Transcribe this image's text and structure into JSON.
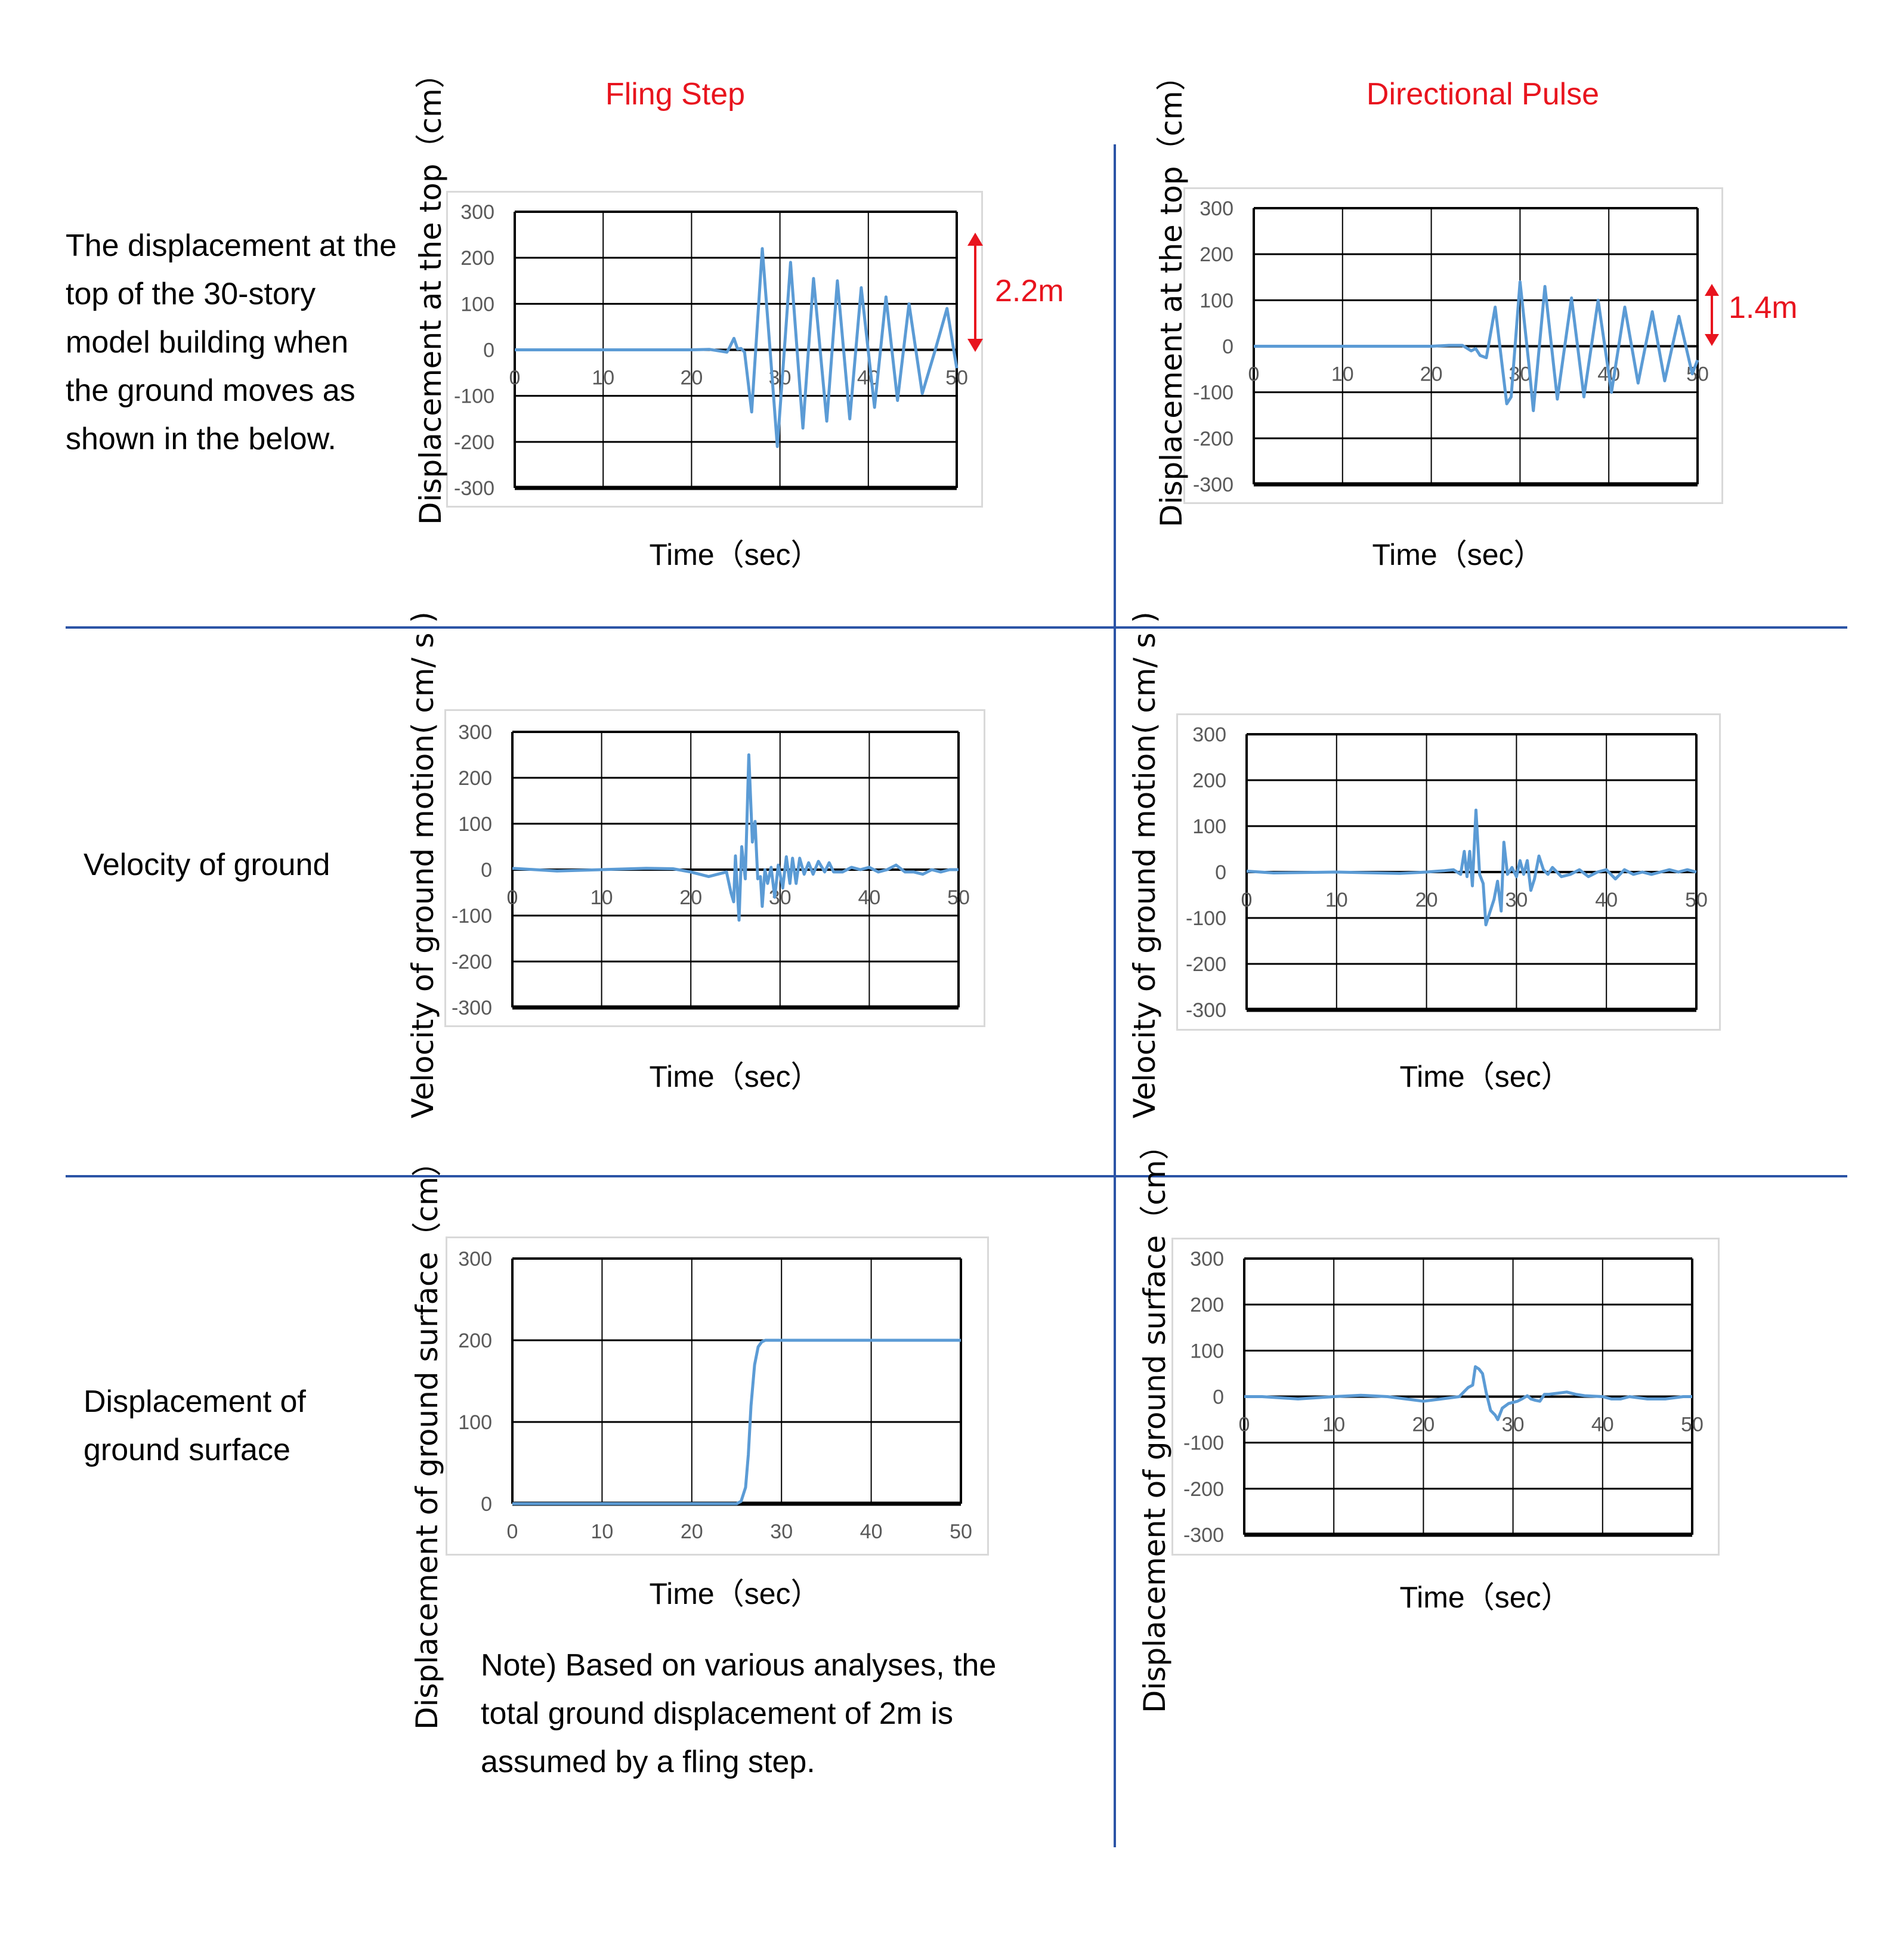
{
  "columns": {
    "left_title": "Fling Step",
    "right_title": "Directional Pulse"
  },
  "row_labels": {
    "row1": "The displacement at the\ntop of the 30-story\nmodel building when\nthe ground moves as\nshown in the below.",
    "row2": "Velocity of ground",
    "row3": "Displacement of\nground surface"
  },
  "note": "Note) Based on various analyses, the\ntotal ground displacement of 2m is\nassumed  by a fling step.",
  "annotations": {
    "fling_amplitude": "2.2m",
    "pulse_amplitude": "1.4m"
  },
  "colors": {
    "title": "#e8141e",
    "series": "#5b9bd5",
    "divider": "#2c54a6",
    "annotation": "#e8141e"
  },
  "chart_data": [
    {
      "id": "fling-top-displacement",
      "type": "line",
      "title": "",
      "xlabel": "Time（sec）",
      "ylabel": "Displacement at the top（cm）",
      "xlim": [
        0,
        50
      ],
      "ylim": [
        -300,
        300
      ],
      "xticks": [
        "0",
        "10",
        "20",
        "30",
        "40",
        "50"
      ],
      "yticks": [
        "300",
        "200",
        "100",
        "0",
        "-100",
        "-200",
        "-300"
      ],
      "grid": true,
      "x_tick_position": "on zero line",
      "series": [
        {
          "name": "Displacement at the top",
          "x": [
            0,
            20,
            22,
            23,
            24,
            24.3,
            24.8,
            25.2,
            25.6,
            26,
            26.8,
            28,
            29,
            29.7,
            30.5,
            31.2,
            32.6,
            33.8,
            35.3,
            36.5,
            37.9,
            39.2,
            40.7,
            42,
            43.3,
            44.6,
            46.1,
            47.5,
            48.9,
            50
          ],
          "y": [
            0,
            0,
            1,
            -2,
            -5,
            5,
            25,
            2,
            3,
            -5,
            -135,
            220,
            -30,
            -210,
            0,
            190,
            -170,
            155,
            -155,
            150,
            -150,
            135,
            -125,
            115,
            -110,
            100,
            -95,
            -5,
            90,
            -40
          ]
        }
      ]
    },
    {
      "id": "pulse-top-displacement",
      "type": "line",
      "title": "",
      "xlabel": "Time（sec）",
      "ylabel": "Displacement at the top（cm）",
      "xlim": [
        0,
        50
      ],
      "ylim": [
        -300,
        300
      ],
      "xticks": [
        "0",
        "10",
        "20",
        "30",
        "40",
        "50"
      ],
      "yticks": [
        "300",
        "200",
        "100",
        "0",
        "-100",
        "-200",
        "-300"
      ],
      "grid": true,
      "series": [
        {
          "name": "Displacement at the top",
          "x": [
            0,
            20,
            22,
            23.5,
            24.5,
            25,
            25.5,
            26.2,
            27.2,
            28.5,
            29,
            30,
            31,
            31.5,
            32.8,
            34.2,
            35.8,
            37.2,
            38.8,
            40.3,
            41.8,
            43.3,
            44.9,
            46.3,
            47.9,
            49.4,
            50
          ],
          "y": [
            0,
            0,
            2,
            2,
            -10,
            -5,
            -20,
            -25,
            85,
            -125,
            -110,
            140,
            -40,
            -140,
            130,
            -115,
            105,
            -110,
            100,
            -100,
            85,
            -80,
            75,
            -75,
            65,
            -60,
            -30
          ]
        }
      ]
    },
    {
      "id": "fling-ground-velocity",
      "type": "line",
      "title": "",
      "xlabel": "Time（sec）",
      "ylabel": "Velocity of ground motion( cm/ s )",
      "xlim": [
        0,
        50
      ],
      "ylim": [
        -300,
        300
      ],
      "xticks": [
        "0",
        "10",
        "20",
        "30",
        "40",
        "50"
      ],
      "yticks": [
        "300",
        "200",
        "100",
        "0",
        "-100",
        "-200",
        "-300"
      ],
      "grid": true,
      "series": [
        {
          "name": "Velocity of ground motion",
          "x": [
            0,
            5,
            10,
            15,
            18,
            20,
            22,
            23,
            24,
            24.5,
            24.8,
            25,
            25.4,
            25.7,
            26.1,
            26.5,
            26.9,
            27.2,
            27.5,
            27.8,
            28,
            28.3,
            28.6,
            29,
            29.4,
            29.8,
            30.3,
            30.7,
            31.1,
            31.4,
            31.8,
            32.2,
            32.7,
            33.2,
            33.7,
            34.3,
            35,
            35.5,
            36,
            37,
            38,
            39,
            40,
            41,
            42,
            43,
            44,
            45,
            46,
            47,
            48,
            49,
            50
          ],
          "y": [
            3,
            -3,
            0,
            3,
            2,
            -5,
            -15,
            -10,
            -5,
            -50,
            -70,
            30,
            -110,
            50,
            -20,
            250,
            60,
            105,
            -20,
            -15,
            -80,
            0,
            -30,
            5,
            -60,
            10,
            -40,
            28,
            -30,
            25,
            -30,
            25,
            -10,
            15,
            -10,
            18,
            -5,
            15,
            -5,
            -5,
            5,
            0,
            5,
            -5,
            0,
            10,
            -5,
            -5,
            -10,
            0,
            -5,
            0,
            0
          ]
        }
      ]
    },
    {
      "id": "pulse-ground-velocity",
      "type": "line",
      "title": "",
      "xlabel": "Time（sec）",
      "ylabel": "Velocity of ground motion( cm/ s )",
      "xlim": [
        0,
        50
      ],
      "ylim": [
        -300,
        300
      ],
      "xticks": [
        "0",
        "10",
        "20",
        "30",
        "40",
        "50"
      ],
      "yticks": [
        "300",
        "200",
        "100",
        "0",
        "-100",
        "-200",
        "-300"
      ],
      "grid": true,
      "series": [
        {
          "name": "Velocity of ground motion",
          "x": [
            0,
            3,
            10,
            17,
            20,
            22,
            23,
            23.8,
            24.2,
            24.5,
            24.8,
            25.1,
            25.5,
            25.9,
            26.3,
            26.6,
            27,
            27.5,
            27.9,
            28.3,
            28.6,
            29,
            29.5,
            30,
            30.4,
            30.8,
            31.2,
            31.6,
            32,
            32.5,
            33,
            33.5,
            34,
            35,
            36,
            37,
            38,
            39,
            40,
            41,
            42,
            43,
            44,
            45,
            46,
            47,
            48,
            49,
            50
          ],
          "y": [
            2,
            -2,
            0,
            -3,
            0,
            3,
            5,
            -5,
            45,
            -10,
            45,
            -30,
            135,
            -5,
            -25,
            -115,
            -90,
            -60,
            -20,
            -85,
            65,
            -5,
            10,
            -10,
            25,
            -5,
            25,
            -40,
            -15,
            35,
            5,
            -5,
            10,
            -10,
            -5,
            5,
            -10,
            0,
            5,
            -15,
            5,
            -5,
            0,
            -5,
            0,
            5,
            0,
            5,
            0
          ]
        }
      ]
    },
    {
      "id": "fling-ground-displacement",
      "type": "line",
      "title": "",
      "xlabel": "Time（sec）",
      "ylabel": "Displacement of ground surface（cm）",
      "xlim": [
        0,
        50
      ],
      "ylim": [
        0,
        300
      ],
      "xticks": [
        "0",
        "10",
        "20",
        "30",
        "40",
        "50"
      ],
      "yticks": [
        "300",
        "200",
        "100",
        "0"
      ],
      "grid": true,
      "series": [
        {
          "name": "Displacement of ground surface",
          "x": [
            0,
            25,
            25.5,
            26,
            26.3,
            26.6,
            27,
            27.4,
            27.8,
            28.2,
            50
          ],
          "y": [
            0,
            0,
            3,
            20,
            60,
            120,
            170,
            192,
            198,
            200,
            200
          ]
        }
      ]
    },
    {
      "id": "pulse-ground-displacement",
      "type": "line",
      "title": "",
      "xlabel": "Time（sec）",
      "ylabel": "Displacement of ground surface（cm）",
      "xlim": [
        0,
        50
      ],
      "ylim": [
        -300,
        300
      ],
      "xticks": [
        "0",
        "10",
        "20",
        "30",
        "40",
        "50"
      ],
      "yticks": [
        "300",
        "200",
        "100",
        "0",
        "-100",
        "-200",
        "-300"
      ],
      "grid": true,
      "series": [
        {
          "name": "Displacement of ground surface",
          "x": [
            0,
            2,
            6,
            10,
            13,
            16,
            20,
            22,
            24,
            24.5,
            25,
            25.5,
            25.8,
            26.2,
            26.6,
            27,
            27.5,
            28,
            28.3,
            28.8,
            29.5,
            30.5,
            31,
            31.6,
            32,
            32.5,
            33,
            33.5,
            34,
            36,
            37,
            38,
            40,
            41,
            42,
            43,
            45,
            47,
            49,
            50
          ],
          "y": [
            0,
            0,
            -5,
            0,
            3,
            0,
            -10,
            -5,
            0,
            10,
            20,
            25,
            65,
            60,
            50,
            10,
            -30,
            -40,
            -50,
            -25,
            -15,
            -10,
            -5,
            2,
            -5,
            -8,
            -10,
            5,
            5,
            10,
            5,
            2,
            0,
            -5,
            -5,
            0,
            -5,
            -5,
            0,
            0
          ]
        }
      ]
    }
  ]
}
